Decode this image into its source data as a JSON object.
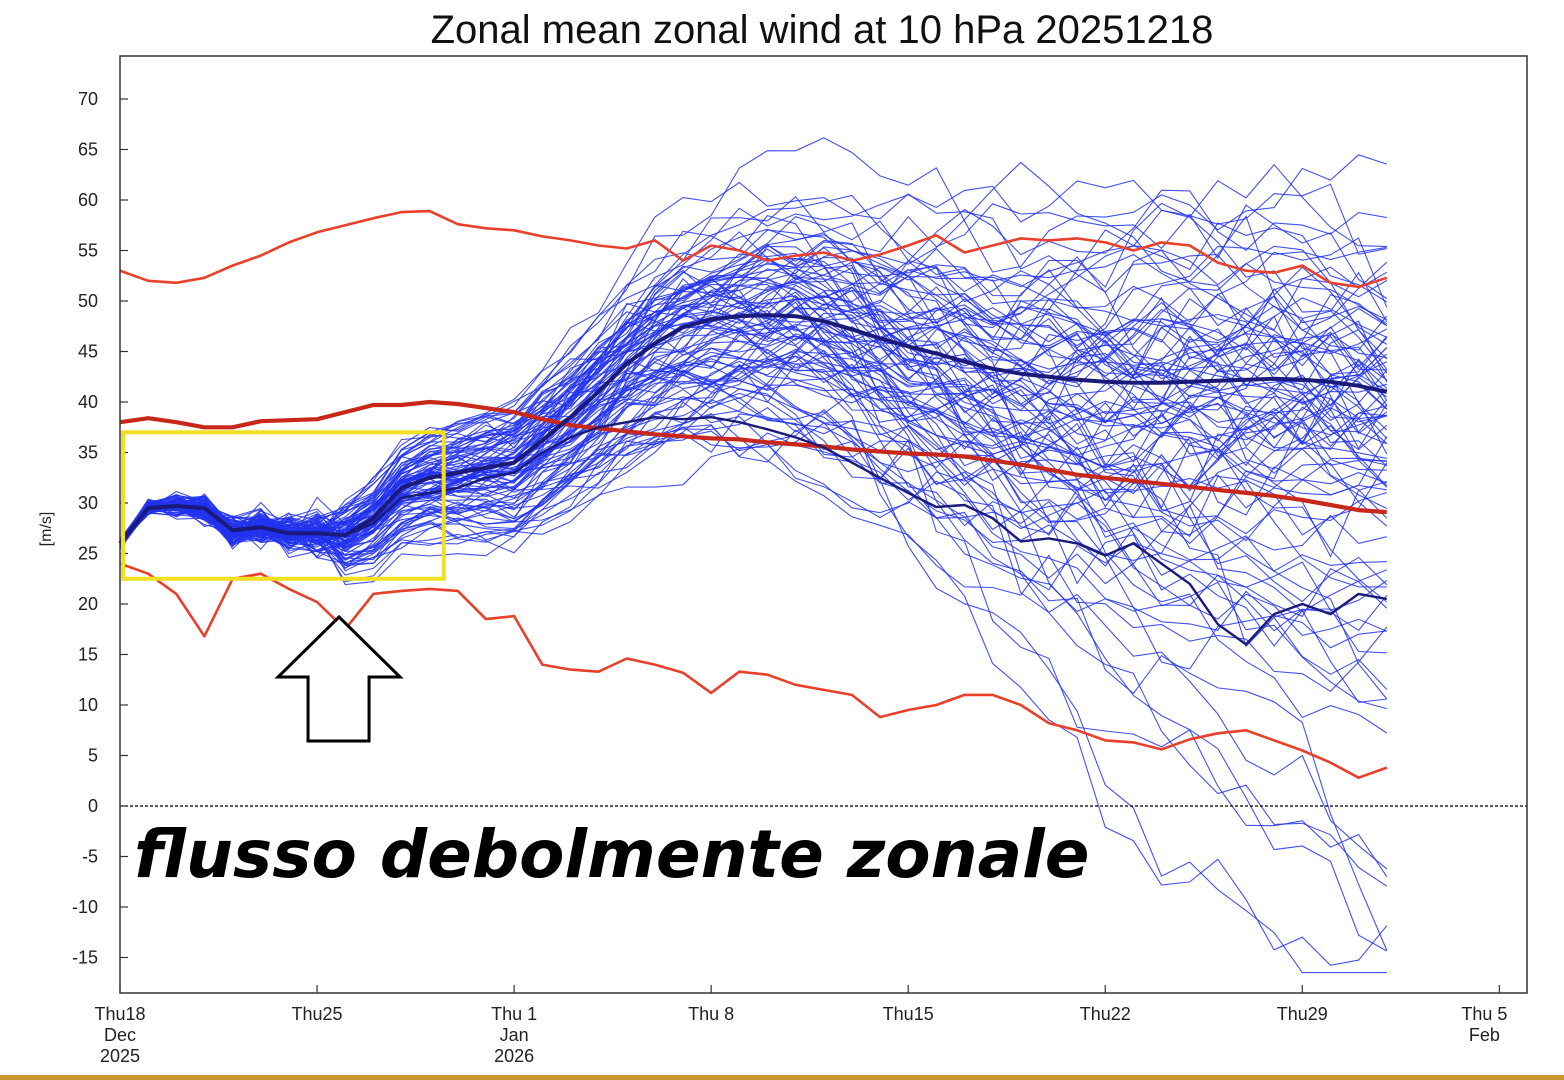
{
  "chart_data": {
    "type": "line",
    "title": "Zonal mean zonal wind at 10 hPa 20251218",
    "ylabel": "[m/s]",
    "xlabel": "",
    "ylim": [
      -18,
      74
    ],
    "yticks": [
      70,
      65,
      60,
      55,
      50,
      45,
      40,
      35,
      30,
      25,
      20,
      15,
      10,
      5,
      0,
      -5,
      -10,
      -15
    ],
    "xlim_days": [
      0,
      49
    ],
    "xticks": [
      {
        "day": 0,
        "lines": [
          "Thu18",
          "Dec",
          "2025"
        ]
      },
      {
        "day": 7,
        "lines": [
          "Thu25"
        ]
      },
      {
        "day": 14,
        "lines": [
          "Thu 1",
          "Jan",
          "2026"
        ]
      },
      {
        "day": 21,
        "lines": [
          "Thu 8"
        ]
      },
      {
        "day": 28,
        "lines": [
          "Thu15"
        ]
      },
      {
        "day": 35,
        "lines": [
          "Thu22"
        ]
      },
      {
        "day": 42,
        "lines": [
          "Thu29"
        ]
      },
      {
        "day": 49,
        "lines": [
          "Thu 5",
          "Feb"
        ]
      }
    ],
    "grid": false,
    "zero_line": true,
    "series": [
      {
        "role": "climatology-max",
        "color": "#e8402a",
        "x": [
          0,
          1,
          2,
          3,
          4,
          5,
          6,
          7,
          8,
          9,
          10,
          11,
          12,
          13,
          14,
          15,
          16,
          17,
          18,
          19,
          20,
          21,
          22,
          23,
          24,
          25,
          26,
          27,
          28,
          29,
          30,
          31,
          32,
          33,
          34,
          35,
          36,
          37,
          38,
          39,
          40,
          41,
          42,
          43,
          44,
          45
        ],
        "values": [
          53,
          52,
          51.8,
          52.3,
          53.5,
          54.5,
          55.8,
          56.8,
          57.5,
          58.2,
          58.8,
          58.9,
          57.6,
          57.2,
          57.0,
          56.4,
          56.0,
          55.5,
          55.2,
          56.0,
          54.0,
          55.5,
          55.0,
          54.0,
          54.5,
          54.8,
          54.0,
          54.6,
          55.5,
          56.5,
          54.8,
          55.5,
          56.2,
          56.0,
          56.2,
          55.8,
          55.0,
          55.8,
          55.5,
          53.8,
          53.0,
          52.8,
          53.5,
          51.8,
          51.4,
          52.3
        ]
      },
      {
        "role": "climatology-mean",
        "color": "#c8281a",
        "x": [
          0,
          1,
          2,
          3,
          4,
          5,
          6,
          7,
          8,
          9,
          10,
          11,
          12,
          13,
          14,
          15,
          16,
          17,
          18,
          19,
          20,
          21,
          22,
          23,
          24,
          25,
          26,
          27,
          28,
          29,
          30,
          31,
          32,
          33,
          34,
          35,
          36,
          37,
          38,
          39,
          40,
          41,
          42,
          43,
          44,
          45
        ],
        "values": [
          38,
          38.4,
          38.0,
          37.5,
          37.5,
          38.1,
          38.2,
          38.3,
          39.0,
          39.7,
          39.7,
          40.0,
          39.8,
          39.4,
          39.0,
          38.3,
          37.7,
          37.4,
          37.1,
          36.8,
          36.6,
          36.4,
          36.3,
          36.0,
          35.8,
          35.6,
          35.3,
          35.1,
          34.9,
          34.8,
          34.6,
          34.2,
          33.8,
          33.3,
          32.8,
          32.5,
          32.2,
          31.9,
          31.6,
          31.3,
          31.0,
          30.7,
          30.3,
          29.8,
          29.3,
          29.1
        ]
      },
      {
        "role": "climatology-min",
        "color": "#e8402a",
        "x": [
          0,
          1,
          2,
          3,
          4,
          5,
          6,
          7,
          8,
          9,
          10,
          11,
          12,
          13,
          14,
          15,
          16,
          17,
          18,
          19,
          20,
          21,
          22,
          23,
          24,
          25,
          26,
          27,
          28,
          29,
          30,
          31,
          32,
          33,
          34,
          35,
          36,
          37,
          38,
          39,
          40,
          41,
          42,
          43,
          44,
          45
        ],
        "values": [
          24,
          23,
          21,
          16.8,
          22.5,
          23,
          21.5,
          20.2,
          17.5,
          21,
          21.3,
          21.5,
          21.3,
          18.5,
          18.8,
          14,
          13.5,
          13.3,
          14.6,
          14,
          13.2,
          11.2,
          13.3,
          13.0,
          12.0,
          11.5,
          11.0,
          8.8,
          9.5,
          10.0,
          11.0,
          11.0,
          10.0,
          8.2,
          7.5,
          6.5,
          6.3,
          5.6,
          6.6,
          7.2,
          7.5,
          6.5,
          5.5,
          4.3,
          2.8,
          3.8
        ]
      },
      {
        "role": "ensemble-mean",
        "color": "#1a1a7a",
        "x": [
          0,
          1,
          2,
          3,
          4,
          5,
          6,
          7,
          8,
          9,
          10,
          11,
          12,
          13,
          14,
          15,
          16,
          17,
          18,
          19,
          20,
          21,
          22,
          23,
          24,
          25,
          26,
          27,
          28,
          29,
          30,
          31,
          32,
          33,
          34,
          35,
          36,
          37,
          38,
          39,
          40,
          41,
          42,
          43,
          44,
          45
        ],
        "values": [
          26,
          29.5,
          29.7,
          29.5,
          27.3,
          27.6,
          27.0,
          27.0,
          26.8,
          28.5,
          31.5,
          32.5,
          33.0,
          33.5,
          34.0,
          36.2,
          38.5,
          41.0,
          43.8,
          45.8,
          47.4,
          48.2,
          48.5,
          48.6,
          48.5,
          48.0,
          47.2,
          46.3,
          45.5,
          44.8,
          44.0,
          43.3,
          42.8,
          42.5,
          42.2,
          42.0,
          41.9,
          41.9,
          42.0,
          42.1,
          42.2,
          42.3,
          42.2,
          42.0,
          41.6,
          41.0
        ]
      },
      {
        "role": "control-member",
        "color": "#1a1a7a",
        "x": [
          0,
          1,
          2,
          3,
          4,
          5,
          6,
          7,
          8,
          9,
          10,
          11,
          12,
          13,
          14,
          15,
          16,
          17,
          18,
          19,
          20,
          21,
          22,
          23,
          24,
          25,
          26,
          27,
          28,
          29,
          30,
          31,
          32,
          33,
          34,
          35,
          36,
          37,
          38,
          39,
          40,
          41,
          42,
          43,
          44,
          45
        ],
        "values": [
          26,
          29.5,
          29.7,
          29.5,
          27.3,
          27.6,
          27.0,
          27.0,
          26.8,
          28.0,
          30.5,
          31.0,
          31.5,
          32.5,
          33.0,
          35.0,
          36.5,
          37.5,
          38.0,
          38.5,
          38.3,
          38.5,
          38.0,
          37.3,
          36.5,
          35.5,
          34.0,
          32.5,
          31.0,
          29.6,
          29.8,
          28.5,
          26.2,
          26.5,
          26.0,
          24.8,
          26.0,
          24.0,
          22.0,
          18.0,
          16.0,
          19.0,
          20.0,
          19.0,
          21.0,
          20.5
        ]
      }
    ],
    "ensemble": {
      "color": "#2233ee",
      "members": 100,
      "start_value": 26,
      "typical_range_day_20": [
        35,
        60
      ],
      "typical_range_day_45": [
        -3,
        66
      ]
    },
    "annotations": {
      "overlay_text": "flusso debolmente zonale",
      "highlight_box": {
        "color": "#f0e020",
        "x_days": [
          0,
          11.5
        ],
        "y_values": [
          22.5,
          37
        ]
      },
      "arrow": "hollow up-arrow pointing to day 7"
    }
  },
  "colors": {
    "background": "#ffffff",
    "axes": "#333333",
    "bottom_bar": "#c8962e"
  }
}
